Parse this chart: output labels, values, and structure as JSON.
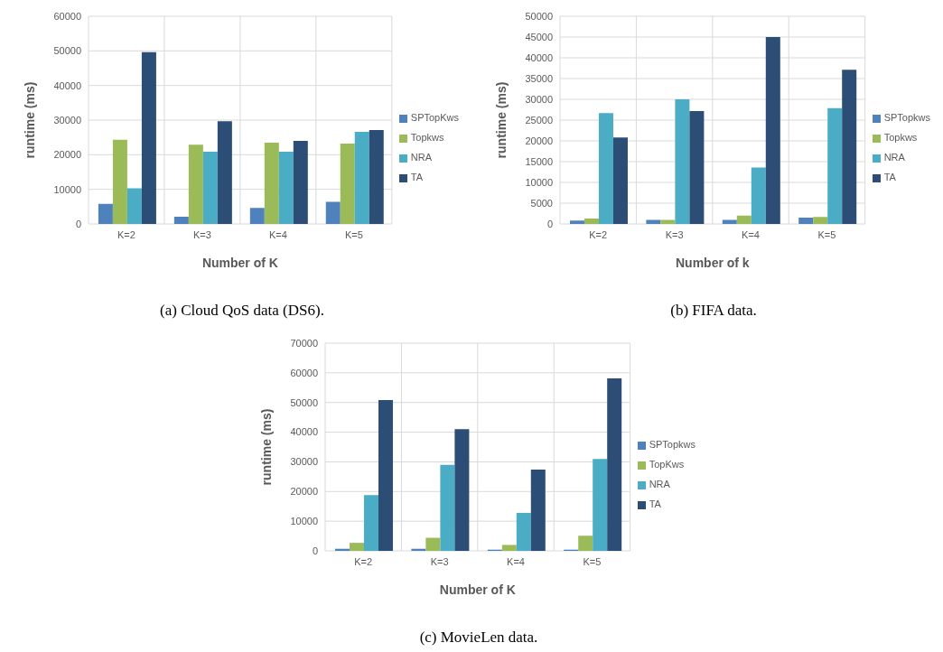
{
  "chart_data": [
    {
      "type": "bar",
      "title": "(a)  Cloud QoS data (DS6).",
      "xlabel": "Number of K",
      "ylabel": "runtime (ms)",
      "categories": [
        "K=2",
        "K=3",
        "K=4",
        "K=5"
      ],
      "ylim": [
        0,
        60000
      ],
      "yticks": [
        0,
        10000,
        20000,
        30000,
        40000,
        50000,
        60000
      ],
      "grid": true,
      "legend": "right",
      "series": [
        {
          "name": "SPTopKws",
          "color": "#4f81bd",
          "values": [
            5800,
            2100,
            4600,
            6400
          ]
        },
        {
          "name": "Topkws",
          "color": "#9bbb59",
          "values": [
            24300,
            22900,
            23500,
            23200
          ]
        },
        {
          "name": "NRA",
          "color": "#4bacc6",
          "values": [
            10300,
            20900,
            20900,
            26600
          ]
        },
        {
          "name": "TA",
          "color": "#2c4d75",
          "values": [
            49600,
            29700,
            24000,
            27100
          ]
        }
      ]
    },
    {
      "type": "bar",
      "title": "(b)  FIFA data.",
      "xlabel": "Number of k",
      "ylabel": "runtime (ms)",
      "categories": [
        "K=2",
        "K=3",
        "K=4",
        "K=5"
      ],
      "ylim": [
        0,
        50000
      ],
      "yticks": [
        0,
        5000,
        10000,
        15000,
        20000,
        25000,
        30000,
        35000,
        40000,
        45000,
        50000
      ],
      "grid": true,
      "legend": "right",
      "series": [
        {
          "name": "SPTopkws",
          "color": "#4f81bd",
          "values": [
            800,
            1000,
            1000,
            1500
          ]
        },
        {
          "name": "Topkws",
          "color": "#9bbb59",
          "values": [
            1300,
            1000,
            2000,
            1700
          ]
        },
        {
          "name": "NRA",
          "color": "#4bacc6",
          "values": [
            26700,
            30000,
            13600,
            27900
          ]
        },
        {
          "name": "TA",
          "color": "#2c4d75",
          "values": [
            20800,
            27200,
            45000,
            37100
          ]
        }
      ]
    },
    {
      "type": "bar",
      "title": "(c)  MovieLen data.",
      "xlabel": "Number of K",
      "ylabel": "runtime (ms)",
      "categories": [
        "K=2",
        "K=3",
        "K=4",
        "K=5"
      ],
      "ylim": [
        0,
        70000
      ],
      "yticks": [
        0,
        10000,
        20000,
        30000,
        40000,
        50000,
        60000,
        70000
      ],
      "grid": true,
      "legend": "right",
      "series": [
        {
          "name": "SPTopkws",
          "color": "#4f81bd",
          "values": [
            700,
            700,
            400,
            400
          ]
        },
        {
          "name": "TopKws",
          "color": "#9bbb59",
          "values": [
            2700,
            4400,
            2000,
            5100
          ]
        },
        {
          "name": "NRA",
          "color": "#4bacc6",
          "values": [
            18800,
            29000,
            12800,
            31000
          ]
        },
        {
          "name": "TA",
          "color": "#2c4d75",
          "values": [
            50800,
            41000,
            27400,
            58100
          ]
        }
      ]
    }
  ]
}
